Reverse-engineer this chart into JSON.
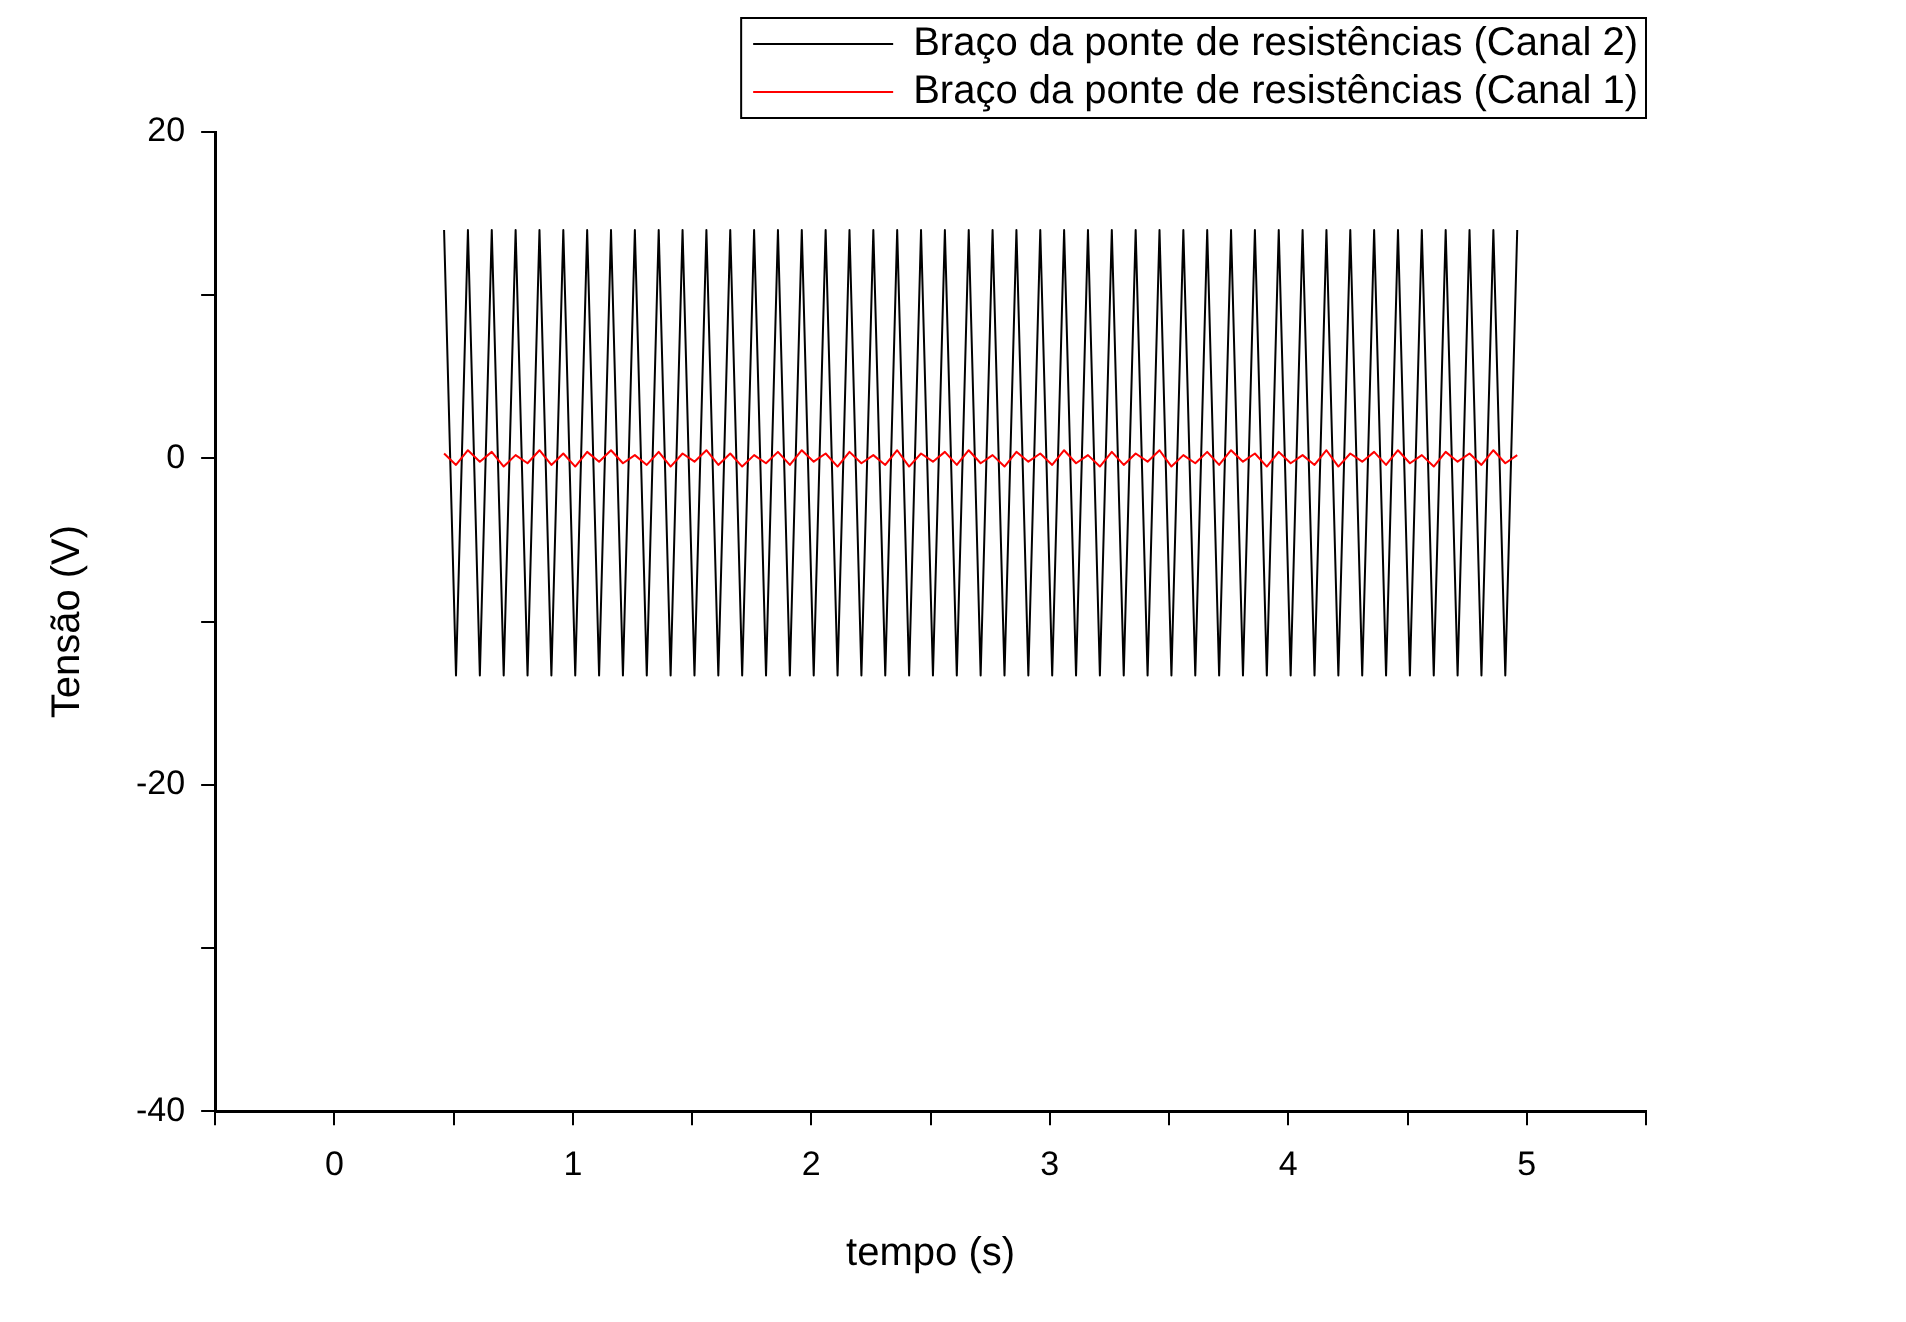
{
  "chart_data": {
    "type": "line",
    "xlabel": "tempo (s)",
    "ylabel": "Tensão (V)",
    "xlim": [
      -0.5,
      5.5
    ],
    "xticks": [
      {
        "value": -0.5,
        "label": null
      },
      0,
      {
        "value": 0.5,
        "label": null
      },
      1,
      {
        "value": 1.5,
        "label": null
      },
      2,
      {
        "value": 2.5,
        "label": null
      },
      3,
      {
        "value": 3.5,
        "label": null
      },
      4,
      {
        "value": 4.5,
        "label": null
      },
      5,
      {
        "value": 5.5,
        "label": null
      }
    ],
    "ylim": [
      -40,
      20
    ],
    "yticks": [
      -40,
      {
        "value": -30,
        "label": null
      },
      -20,
      {
        "value": -10,
        "label": null
      },
      0,
      {
        "value": 10,
        "label": null
      },
      20
    ],
    "grid": false,
    "legend": "top right",
    "marker": "none",
    "line_style": "solid",
    "x": [
      0.46,
      0.51,
      0.56,
      0.61,
      0.66,
      0.71,
      0.76,
      0.81,
      0.86,
      0.91,
      0.96,
      1.01,
      1.06,
      1.11,
      1.16,
      1.21,
      1.26,
      1.31,
      1.36,
      1.41,
      1.46,
      1.51,
      1.56,
      1.61,
      1.66,
      1.71,
      1.76,
      1.81,
      1.86,
      1.91,
      1.96,
      2.01,
      2.06,
      2.11,
      2.16,
      2.21,
      2.26,
      2.31,
      2.36,
      2.41,
      2.46,
      2.51,
      2.56,
      2.61,
      2.66,
      2.71,
      2.76,
      2.81,
      2.86,
      2.91,
      2.96,
      3.01,
      3.06,
      3.11,
      3.16,
      3.21,
      3.26,
      3.31,
      3.36,
      3.41,
      3.46,
      3.51,
      3.56,
      3.61,
      3.66,
      3.71,
      3.76,
      3.81,
      3.86,
      3.91,
      3.96,
      4.01,
      4.06,
      4.11,
      4.16,
      4.21,
      4.26,
      4.31,
      4.36,
      4.41,
      4.46,
      4.51,
      4.56,
      4.61,
      4.66,
      4.71,
      4.76,
      4.81,
      4.86,
      4.91,
      4.96
    ],
    "series": [
      {
        "name": "Braço da ponte de resistências (Canal 2)",
        "color": "#000000",
        "values": [
          14,
          -13.3,
          14,
          -13.3,
          14,
          -13.3,
          14,
          -13.3,
          14,
          -13.3,
          14,
          -13.3,
          14,
          -13.3,
          14,
          -13.3,
          14,
          -13.3,
          14,
          -13.3,
          14,
          -13.3,
          14,
          -13.3,
          14,
          -13.3,
          14,
          -13.3,
          14,
          -13.3,
          14,
          -13.3,
          14,
          -13.3,
          14,
          -13.3,
          14,
          -13.3,
          14,
          -13.3,
          14,
          -13.3,
          14,
          -13.3,
          14,
          -13.3,
          14,
          -13.3,
          14,
          -13.3,
          14,
          -13.3,
          14,
          -13.3,
          14,
          -13.3,
          14,
          -13.3,
          14,
          -13.3,
          14,
          -13.3,
          14,
          -13.3,
          14,
          -13.3,
          14,
          -13.3,
          14,
          -13.3,
          14,
          -13.3,
          14,
          -13.3,
          14,
          -13.3,
          14,
          -13.3,
          14,
          -13.3,
          14,
          -13.3,
          14,
          -13.3,
          14,
          -13.3,
          14,
          -13.3,
          14,
          -13.3,
          14
        ]
      },
      {
        "name": "Braço da ponte de resistências (Canal 1)",
        "color": "#ff0000",
        "values": [
          0.3,
          -0.4,
          0.5,
          -0.2,
          0.4,
          -0.5,
          0.2,
          -0.3,
          0.5,
          -0.4,
          0.3,
          -0.5,
          0.4,
          -0.2,
          0.5,
          -0.3,
          0.2,
          -0.4,
          0.4,
          -0.5,
          0.3,
          -0.2,
          0.5,
          -0.4,
          0.3,
          -0.5,
          0.2,
          -0.3,
          0.4,
          -0.4,
          0.5,
          -0.2,
          0.3,
          -0.5,
          0.4,
          -0.3,
          0.2,
          -0.4,
          0.5,
          -0.5,
          0.3,
          -0.2,
          0.4,
          -0.4,
          0.5,
          -0.3,
          0.2,
          -0.5,
          0.4,
          -0.2,
          0.3,
          -0.4,
          0.5,
          -0.3,
          0.2,
          -0.5,
          0.4,
          -0.4,
          0.3,
          -0.2,
          0.5,
          -0.5,
          0.2,
          -0.3,
          0.4,
          -0.4,
          0.5,
          -0.2,
          0.3,
          -0.5,
          0.4,
          -0.3,
          0.2,
          -0.4,
          0.5,
          -0.5,
          0.3,
          -0.2,
          0.4,
          -0.4,
          0.5,
          -0.3,
          0.2,
          -0.5,
          0.4,
          -0.2,
          0.3,
          -0.4,
          0.5,
          -0.3,
          0.2
        ]
      }
    ]
  }
}
